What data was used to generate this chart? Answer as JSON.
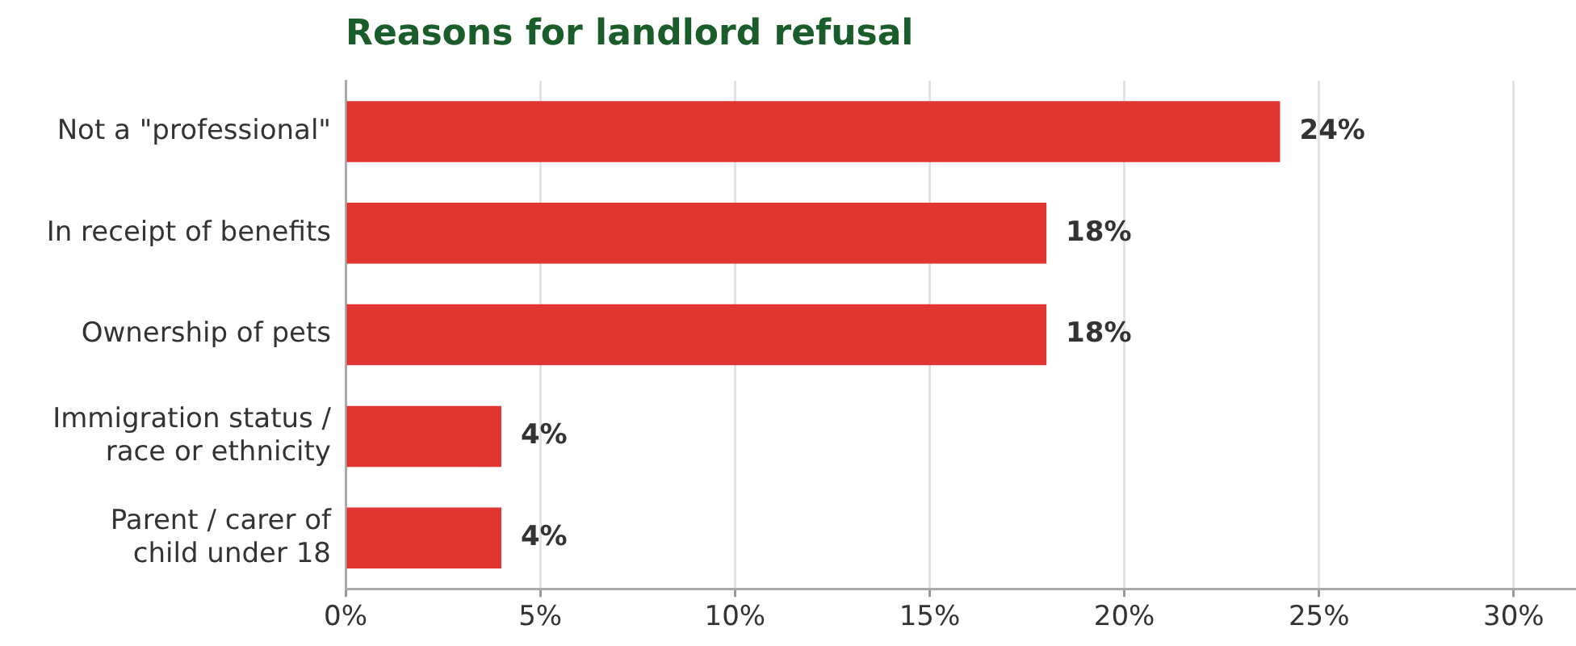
{
  "chart_data": {
    "type": "bar",
    "orientation": "horizontal",
    "title": "Reasons for landlord refusal",
    "categories": [
      "Not a \"professional\"",
      "In receipt of benefits",
      "Ownership of pets",
      "Immigration status /\nrace or ethnicity",
      "Parent / carer of\nchild under 18"
    ],
    "values": [
      24,
      18,
      18,
      4,
      4
    ],
    "color": "#e03531",
    "value_labels": [
      "24%",
      "18%",
      "18%",
      "4%",
      "4%"
    ],
    "xlim": [
      0,
      31.6
    ],
    "xticks": [
      {
        "value": 0,
        "label": "0%"
      },
      {
        "value": 5,
        "label": "5%"
      },
      {
        "value": 10,
        "label": "10%"
      },
      {
        "value": 15,
        "label": "15%"
      },
      {
        "value": 20,
        "label": "20%"
      },
      {
        "value": 25,
        "label": "25%"
      },
      {
        "value": 30,
        "label": "30%"
      }
    ],
    "grid": "x"
  }
}
